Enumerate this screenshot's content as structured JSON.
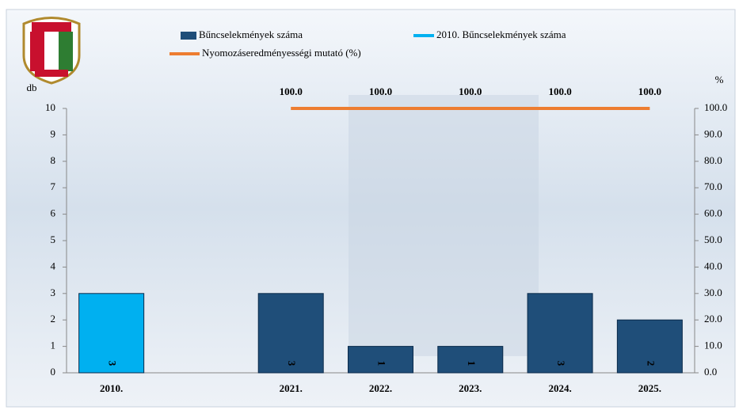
{
  "chart_data": {
    "type": "bar",
    "categories": [
      "2010.",
      null,
      "2021.",
      "2022.",
      "2023.",
      "2024.",
      "2025."
    ],
    "series": [
      {
        "name": "Bűncselekmények száma",
        "color": "#1f4e79",
        "values": [
          null,
          null,
          3,
          1,
          1,
          3,
          2
        ]
      },
      {
        "name": "2010. Bűncselekmények száma",
        "color": "#00b0f0",
        "values": [
          3,
          null,
          null,
          null,
          null,
          null,
          null
        ]
      },
      {
        "name": "Nyomozáseredményességi mutató (%)",
        "type": "line",
        "axis": "y2",
        "color": "#ed7d31",
        "values": [
          null,
          null,
          100,
          100,
          100,
          100,
          100
        ],
        "value_labels": [
          null,
          null,
          "100.0",
          "100.0",
          "100.0",
          "100.0",
          "100.0"
        ]
      }
    ],
    "y_label": "db",
    "y2_label": "%",
    "ylim": [
      0,
      10
    ],
    "yticks": [
      0,
      1,
      2,
      3,
      4,
      5,
      6,
      7,
      8,
      9,
      10
    ],
    "y2lim": [
      0,
      100
    ],
    "y2ticks": [
      {
        "value": 0,
        "label": "0.0"
      },
      {
        "value": 10,
        "label": "10.0"
      },
      {
        "value": 20,
        "label": "20.0"
      },
      {
        "value": 30,
        "label": "30.0"
      },
      {
        "value": 40,
        "label": "40.0"
      },
      {
        "value": 50,
        "label": "50.0"
      },
      {
        "value": 60,
        "label": "60.0"
      },
      {
        "value": 70,
        "label": "70.0"
      },
      {
        "value": 80,
        "label": "80.0"
      },
      {
        "value": 90,
        "label": "90.0"
      },
      {
        "value": 100,
        "label": "100.0"
      }
    ]
  }
}
